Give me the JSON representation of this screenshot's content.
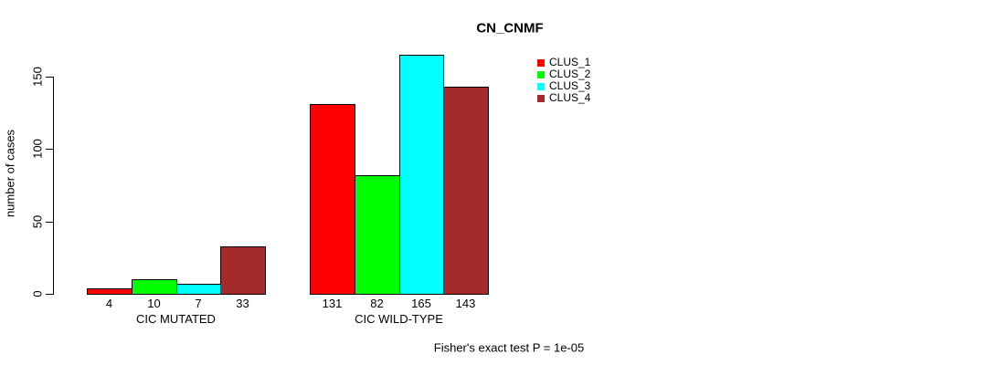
{
  "title": "CN_CNMF",
  "colors": {
    "background": "#FFFFFF",
    "axis": "#000000",
    "text": "#000000",
    "bar_border": "#000000"
  },
  "chart_data": {
    "type": "bar",
    "title": "CN_CNMF",
    "ylabel": "number of cases",
    "xlabel": "",
    "categories": [
      "CIC MUTATED",
      "CIC WILD-TYPE"
    ],
    "series": [
      {
        "name": "CLUS_1",
        "color": "#FF0000",
        "values": [
          4,
          131
        ]
      },
      {
        "name": "CLUS_2",
        "color": "#00FF00",
        "values": [
          10,
          82
        ]
      },
      {
        "name": "CLUS_3",
        "color": "#00FFFF",
        "values": [
          7,
          165
        ]
      },
      {
        "name": "CLUS_4",
        "color": "#A52A2A",
        "values": [
          33,
          143
        ]
      }
    ],
    "bar_value_labels": [
      [
        4,
        10,
        7,
        33
      ],
      [
        131,
        82,
        165,
        143
      ]
    ],
    "yticks": [
      0,
      50,
      100,
      150
    ],
    "ylim": [
      0,
      168
    ],
    "grid": false,
    "legend_position": "top-right",
    "legend_entries": [
      "CLUS_1",
      "CLUS_2",
      "CLUS_3",
      "CLUS_4"
    ],
    "annotation": "Fisher's exact test P = 1e-05"
  }
}
